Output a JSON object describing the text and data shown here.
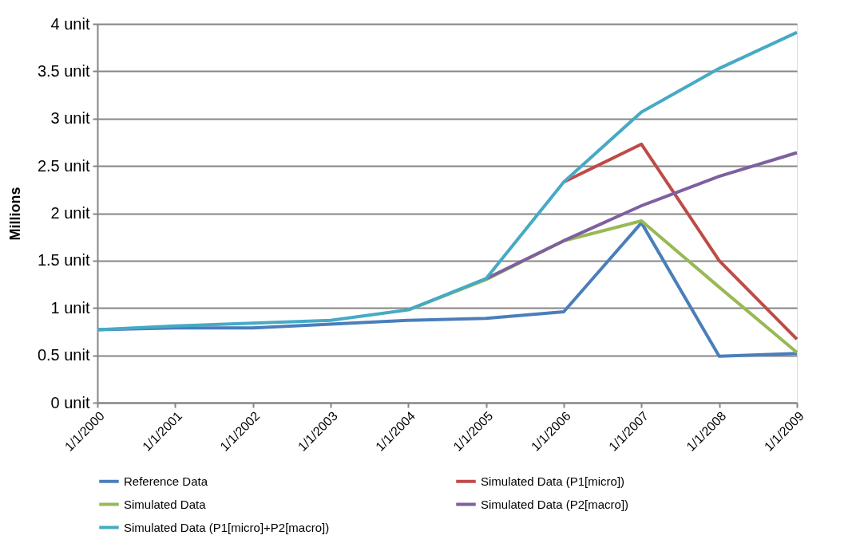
{
  "chart_data": {
    "type": "line",
    "ylabel": "Millions",
    "categories": [
      "1/1/2000",
      "1/1/2001",
      "1/1/2002",
      "1/1/2003",
      "1/1/2004",
      "1/1/2005",
      "1/1/2006",
      "1/1/2007",
      "1/1/2008",
      "1/1/2009"
    ],
    "series": [
      {
        "name": "Reference Data",
        "color": "#4a7ebb",
        "values": [
          0.77,
          0.79,
          0.79,
          0.83,
          0.87,
          0.89,
          0.96,
          1.9,
          0.49,
          0.52
        ]
      },
      {
        "name": "Simulated Data (P1[micro])",
        "color": "#be4b48",
        "values": [
          null,
          null,
          null,
          null,
          null,
          null,
          2.33,
          2.73,
          1.5,
          0.67
        ]
      },
      {
        "name": "Simulated Data",
        "color": "#98b954",
        "values": [
          null,
          null,
          null,
          null,
          0.98,
          1.3,
          1.71,
          1.92,
          1.22,
          0.53
        ]
      },
      {
        "name": "Simulated Data (P2[macro])",
        "color": "#7d60a0",
        "values": [
          null,
          null,
          null,
          null,
          null,
          1.31,
          1.71,
          2.08,
          2.39,
          2.64
        ]
      },
      {
        "name": "Simulated Data (P1[micro]+P2[macro])",
        "color": "#46aac5",
        "values": [
          0.77,
          0.81,
          0.84,
          0.87,
          0.98,
          1.31,
          2.33,
          3.07,
          3.53,
          3.91
        ]
      }
    ],
    "ylim": [
      0,
      4
    ],
    "yticks": [
      {
        "value": 0,
        "label": "0  unit"
      },
      {
        "value": 0.5,
        "label": "0.5  unit"
      },
      {
        "value": 1,
        "label": "1  unit"
      },
      {
        "value": 1.5,
        "label": "1.5  unit"
      },
      {
        "value": 2,
        "label": "2  unit"
      },
      {
        "value": 2.5,
        "label": "2.5  unit"
      },
      {
        "value": 3,
        "label": "3  unit"
      },
      {
        "value": 3.5,
        "label": "3.5  unit"
      },
      {
        "value": 4,
        "label": "4  unit"
      }
    ],
    "grid": "y",
    "legend": "bottom",
    "marker": "none",
    "line_style": "solid"
  }
}
